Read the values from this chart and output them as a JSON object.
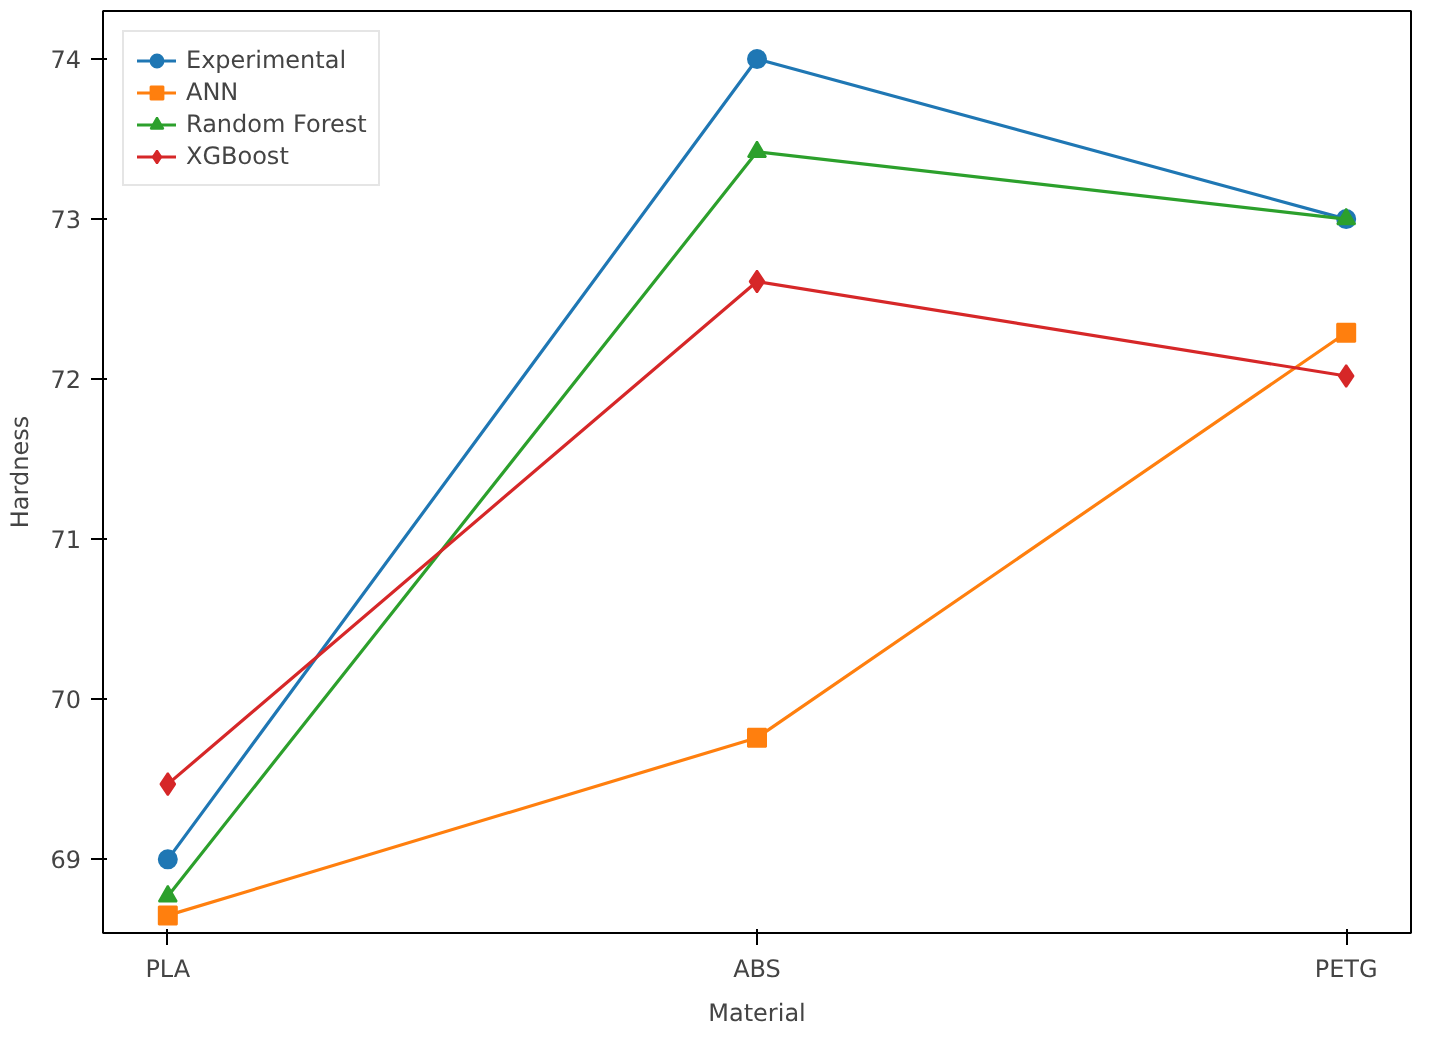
{
  "chart_data": {
    "type": "line",
    "xlabel": "Material",
    "ylabel": "Hardness",
    "categories": [
      "PLA",
      "ABS",
      "PETG"
    ],
    "ylim": [
      68.54,
      74.3
    ],
    "yticks": [
      69,
      70,
      71,
      72,
      73,
      74
    ],
    "grid": false,
    "legend": "top left",
    "series": [
      {
        "name": "Experimental",
        "color": "#1f77b4",
        "marker": "circle",
        "values": [
          69,
          74,
          73
        ]
      },
      {
        "name": "ANN",
        "color": "#ff7f0e",
        "marker": "square",
        "values": [
          68.65,
          69.76,
          72.29
        ]
      },
      {
        "name": "Random Forest",
        "color": "#2ca02c",
        "marker": "triangle",
        "values": [
          68.77,
          73.42,
          73.0
        ]
      },
      {
        "name": "XGBoost",
        "color": "#d62728",
        "marker": "diamond",
        "values": [
          69.47,
          72.61,
          72.02
        ]
      }
    ]
  }
}
